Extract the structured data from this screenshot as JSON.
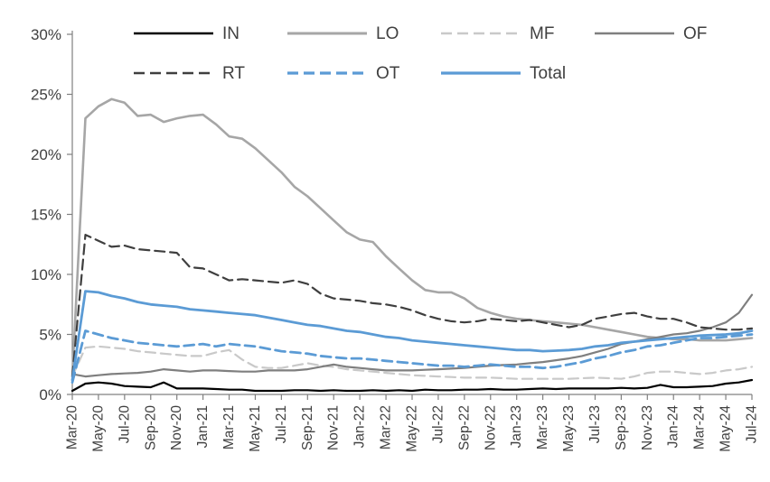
{
  "page": {
    "background": "#ffffff"
  },
  "chart_data": {
    "type": "line",
    "title": "",
    "xlabel": "",
    "ylabel": "",
    "ylim": [
      0,
      30
    ],
    "ytick_labels": [
      "0%",
      "5%",
      "10%",
      "15%",
      "20%",
      "25%",
      "30%"
    ],
    "grid": false,
    "legend_position": "top",
    "axis_color": "#808080",
    "tick_label_color": "#404040",
    "x": [
      "Mar-20",
      "Apr-20",
      "May-20",
      "Jun-20",
      "Jul-20",
      "Aug-20",
      "Sep-20",
      "Oct-20",
      "Nov-20",
      "Dec-20",
      "Jan-21",
      "Feb-21",
      "Mar-21",
      "Apr-21",
      "May-21",
      "Jun-21",
      "Jul-21",
      "Aug-21",
      "Sep-21",
      "Oct-21",
      "Nov-21",
      "Dec-21",
      "Jan-22",
      "Feb-22",
      "Mar-22",
      "Apr-22",
      "May-22",
      "Jun-22",
      "Jul-22",
      "Aug-22",
      "Sep-22",
      "Oct-22",
      "Nov-22",
      "Dec-22",
      "Jan-23",
      "Feb-23",
      "Mar-23",
      "Apr-23",
      "May-23",
      "Jun-23",
      "Jul-23",
      "Aug-23",
      "Sep-23",
      "Oct-23",
      "Nov-23",
      "Dec-23",
      "Jan-24",
      "Feb-24",
      "Mar-24",
      "Apr-24",
      "May-24",
      "Jun-24",
      "Jul-24"
    ],
    "x_label_every": 2,
    "legend_rows": [
      [
        "IN",
        "LO",
        "MF",
        "OF"
      ],
      [
        "RT",
        "OT",
        "Total"
      ]
    ],
    "series": [
      {
        "name": "IN",
        "color": "#000000",
        "dash": "solid",
        "width": 2.2,
        "values": [
          0.3,
          0.9,
          1.0,
          0.9,
          0.7,
          0.65,
          0.6,
          1.0,
          0.5,
          0.5,
          0.5,
          0.45,
          0.4,
          0.4,
          0.3,
          0.3,
          0.3,
          0.35,
          0.35,
          0.3,
          0.35,
          0.3,
          0.3,
          0.35,
          0.3,
          0.35,
          0.3,
          0.4,
          0.35,
          0.35,
          0.4,
          0.4,
          0.45,
          0.4,
          0.4,
          0.45,
          0.5,
          0.45,
          0.5,
          0.5,
          0.5,
          0.5,
          0.55,
          0.5,
          0.55,
          0.8,
          0.6,
          0.6,
          0.65,
          0.7,
          0.9,
          1.0,
          1.2
        ]
      },
      {
        "name": "LO",
        "color": "#a6a6a6",
        "dash": "solid",
        "width": 2.6,
        "values": [
          1.5,
          23.0,
          24.0,
          24.6,
          24.3,
          23.2,
          23.3,
          22.7,
          23.0,
          23.2,
          23.3,
          22.5,
          21.5,
          21.3,
          20.5,
          19.5,
          18.5,
          17.3,
          16.5,
          15.5,
          14.5,
          13.5,
          12.9,
          12.7,
          11.5,
          10.5,
          9.5,
          8.7,
          8.5,
          8.5,
          8.0,
          7.2,
          6.8,
          6.5,
          6.3,
          6.2,
          6.1,
          6.0,
          5.9,
          5.8,
          5.6,
          5.4,
          5.2,
          5.0,
          4.8,
          4.7,
          4.6,
          4.6,
          4.5,
          4.5,
          4.5,
          4.6,
          4.7
        ]
      },
      {
        "name": "MF",
        "color": "#c9c9c9",
        "dash": "dashed",
        "width": 2.2,
        "values": [
          1.5,
          3.9,
          4.0,
          3.9,
          3.8,
          3.6,
          3.5,
          3.4,
          3.3,
          3.2,
          3.2,
          3.5,
          3.7,
          2.9,
          2.3,
          2.2,
          2.2,
          2.4,
          2.6,
          2.4,
          2.3,
          2.1,
          2.0,
          1.9,
          1.8,
          1.7,
          1.6,
          1.55,
          1.5,
          1.45,
          1.4,
          1.4,
          1.4,
          1.35,
          1.3,
          1.3,
          1.3,
          1.3,
          1.3,
          1.35,
          1.4,
          1.35,
          1.3,
          1.5,
          1.8,
          1.9,
          1.9,
          1.8,
          1.7,
          1.8,
          2.0,
          2.1,
          2.3
        ]
      },
      {
        "name": "OF",
        "color": "#7f7f7f",
        "dash": "solid",
        "width": 2.2,
        "values": [
          1.7,
          1.5,
          1.6,
          1.7,
          1.75,
          1.8,
          1.9,
          2.1,
          2.0,
          1.9,
          2.0,
          2.0,
          1.95,
          1.9,
          1.9,
          2.0,
          2.0,
          2.0,
          2.1,
          2.3,
          2.5,
          2.3,
          2.2,
          2.1,
          2.0,
          2.0,
          2.0,
          2.05,
          2.1,
          2.15,
          2.2,
          2.3,
          2.4,
          2.45,
          2.5,
          2.6,
          2.7,
          2.85,
          3.0,
          3.2,
          3.5,
          3.8,
          4.2,
          4.4,
          4.6,
          4.8,
          5.0,
          5.1,
          5.3,
          5.6,
          6.0,
          6.8,
          8.3
        ]
      },
      {
        "name": "RT",
        "color": "#3f3f3f",
        "dash": "dashed",
        "width": 2.2,
        "values": [
          1.5,
          13.3,
          12.8,
          12.3,
          12.4,
          12.1,
          12.0,
          11.9,
          11.8,
          10.6,
          10.5,
          10.0,
          9.5,
          9.6,
          9.5,
          9.4,
          9.3,
          9.5,
          9.2,
          8.4,
          8.0,
          7.9,
          7.8,
          7.6,
          7.5,
          7.3,
          7.0,
          6.6,
          6.3,
          6.1,
          6.0,
          6.1,
          6.3,
          6.2,
          6.1,
          6.2,
          6.0,
          5.8,
          5.6,
          5.8,
          6.3,
          6.5,
          6.7,
          6.8,
          6.5,
          6.3,
          6.3,
          6.0,
          5.6,
          5.5,
          5.4,
          5.4,
          5.5
        ]
      },
      {
        "name": "OT",
        "color": "#5b9bd5",
        "dash": "dashed",
        "width": 2.8,
        "values": [
          1.0,
          5.3,
          5.0,
          4.7,
          4.5,
          4.3,
          4.2,
          4.1,
          4.0,
          4.1,
          4.2,
          4.0,
          4.2,
          4.1,
          4.0,
          3.8,
          3.6,
          3.5,
          3.4,
          3.2,
          3.1,
          3.0,
          3.0,
          2.9,
          2.8,
          2.7,
          2.6,
          2.5,
          2.4,
          2.4,
          2.3,
          2.4,
          2.5,
          2.4,
          2.3,
          2.3,
          2.2,
          2.3,
          2.5,
          2.7,
          3.0,
          3.2,
          3.5,
          3.7,
          4.0,
          4.1,
          4.3,
          4.5,
          4.7,
          4.7,
          4.8,
          4.9,
          5.0
        ]
      },
      {
        "name": "Total",
        "color": "#5b9bd5",
        "dash": "solid",
        "width": 2.8,
        "values": [
          1.2,
          8.6,
          8.5,
          8.2,
          8.0,
          7.7,
          7.5,
          7.4,
          7.3,
          7.1,
          7.0,
          6.9,
          6.8,
          6.7,
          6.6,
          6.4,
          6.2,
          6.0,
          5.8,
          5.7,
          5.5,
          5.3,
          5.2,
          5.0,
          4.8,
          4.7,
          4.5,
          4.4,
          4.3,
          4.2,
          4.1,
          4.0,
          3.9,
          3.8,
          3.7,
          3.7,
          3.6,
          3.65,
          3.7,
          3.8,
          4.0,
          4.1,
          4.3,
          4.4,
          4.5,
          4.6,
          4.7,
          4.8,
          4.9,
          4.95,
          5.0,
          5.1,
          5.3
        ]
      }
    ]
  }
}
